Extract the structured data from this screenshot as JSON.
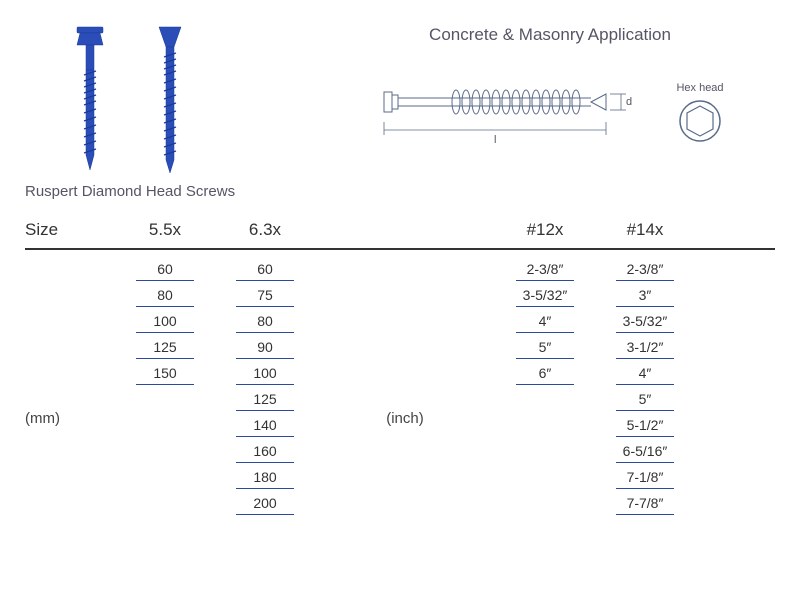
{
  "title": "Concrete & Masonry Application",
  "screws_caption": "Ruspert Diamond Head Screws",
  "hex_head_label": "Hex head",
  "dim_l": "l",
  "dim_d": "d",
  "size_label": "Size",
  "unit_mm": "(mm)",
  "unit_inch": "(inch)",
  "headers": {
    "c55": "5.5x",
    "c63": "6.3x",
    "c12": "#12x",
    "c14": "#14x"
  },
  "columns": {
    "c55": [
      "60",
      "80",
      "100",
      "125",
      "150"
    ],
    "c63": [
      "60",
      "75",
      "80",
      "90",
      "100",
      "125",
      "140",
      "160",
      "180",
      "200"
    ],
    "c12": [
      "2-3/8″",
      "3-5/32″",
      "4″",
      "5″",
      "6″"
    ],
    "c14": [
      "2-3/8″",
      "3″",
      "3-5/32″",
      "3-1/2″",
      "4″",
      "5″",
      "5-1/2″",
      "6-5/16″",
      "7-1/8″",
      "7-7/8″"
    ]
  },
  "colors": {
    "screw": "#2a4db8",
    "diagram": "#5a6b8a",
    "underline": "#2a4b9b"
  }
}
